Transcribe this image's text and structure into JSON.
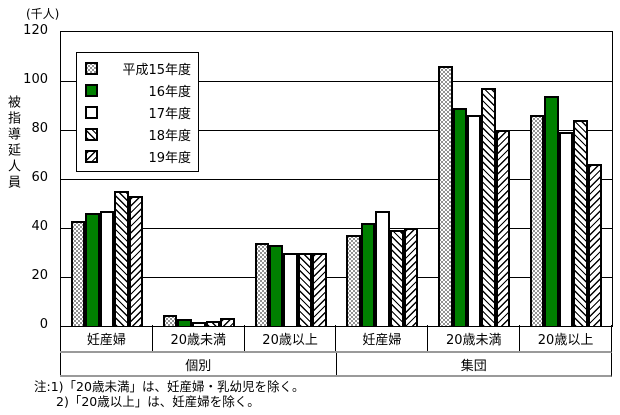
{
  "chart_data": {
    "type": "bar",
    "unit_label": "(千人)",
    "ylabel": "被指導延人員",
    "ylim": [
      0,
      120
    ],
    "yticks": [
      0,
      20,
      40,
      60,
      80,
      100,
      120
    ],
    "grid": true,
    "legend_position": "upper-left",
    "categories": [
      "妊産婦",
      "20歳未満",
      "20歳以上",
      "妊産婦",
      "20歳未満",
      "20歳以上"
    ],
    "groups": [
      {
        "label": "個別",
        "span": 3
      },
      {
        "label": "集団",
        "span": 3
      }
    ],
    "series": [
      {
        "name": "平成15年度",
        "pattern": "dots",
        "values": [
          43,
          4.5,
          34,
          37,
          106,
          86
        ]
      },
      {
        "name": "16年度",
        "pattern": "green",
        "color": "#008000",
        "values": [
          46,
          2.7,
          33,
          42,
          89,
          94
        ]
      },
      {
        "name": "17年度",
        "pattern": "white",
        "values": [
          47,
          1.8,
          30,
          47,
          86,
          79
        ]
      },
      {
        "name": "18年度",
        "pattern": "backslash",
        "values": [
          55,
          2.1,
          30,
          39,
          97,
          84
        ]
      },
      {
        "name": "19年度",
        "pattern": "slash",
        "values": [
          53,
          3.2,
          30,
          40,
          80,
          66
        ]
      }
    ]
  },
  "notes": {
    "line1": "注:1)「20歳未満」は、妊産婦・乳幼児を除く。",
    "line2": "2)「20歳以上」は、妊産婦を除く。"
  },
  "colors": {
    "bar_green": "#008000",
    "axis": "#000000",
    "separator_gray": "#9a9a9a",
    "background": "#ffffff"
  }
}
